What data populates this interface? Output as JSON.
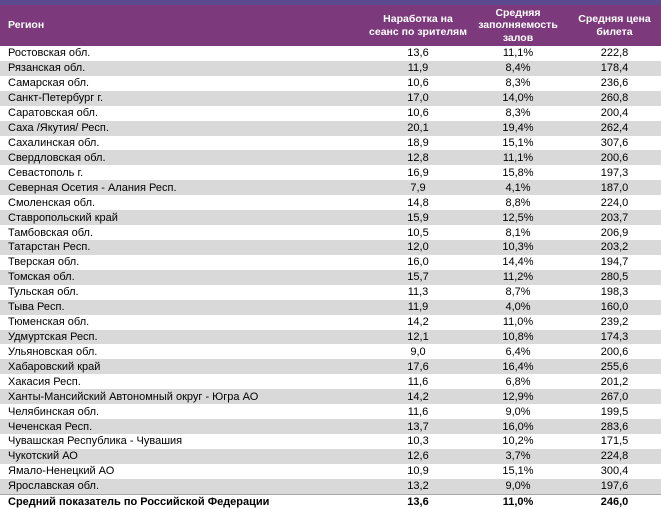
{
  "chart_data": {
    "type": "table",
    "title": "",
    "columns": [
      "Регион",
      "Наработка на сеанс по зрителям",
      "Средняя заполняемость залов",
      "Средняя цена билета"
    ],
    "rows": [
      [
        "Ростовская обл.",
        "13,6",
        "11,1%",
        "222,8"
      ],
      [
        "Рязанская обл.",
        "11,9",
        "8,4%",
        "178,4"
      ],
      [
        "Самарская обл.",
        "10,6",
        "8,3%",
        "236,6"
      ],
      [
        "Санкт-Петербург г.",
        "17,0",
        "14,0%",
        "260,8"
      ],
      [
        "Саратовская обл.",
        "10,6",
        "8,3%",
        "200,4"
      ],
      [
        "Саха /Якутия/ Респ.",
        "20,1",
        "19,4%",
        "262,4"
      ],
      [
        "Сахалинская обл.",
        "18,9",
        "15,1%",
        "307,6"
      ],
      [
        "Свердловская обл.",
        "12,8",
        "11,1%",
        "200,6"
      ],
      [
        "Севастополь г.",
        "16,9",
        "15,8%",
        "197,3"
      ],
      [
        "Северная Осетия - Алания Респ.",
        "7,9",
        "4,1%",
        "187,0"
      ],
      [
        "Смоленская обл.",
        "14,8",
        "8,8%",
        "224,0"
      ],
      [
        "Ставропольский край",
        "15,9",
        "12,5%",
        "203,7"
      ],
      [
        "Тамбовская обл.",
        "10,5",
        "8,1%",
        "206,9"
      ],
      [
        "Татарстан Респ.",
        "12,0",
        "10,3%",
        "203,2"
      ],
      [
        "Тверская обл.",
        "16,0",
        "14,4%",
        "194,7"
      ],
      [
        "Томская обл.",
        "15,7",
        "11,2%",
        "280,5"
      ],
      [
        "Тульская обл.",
        "11,3",
        "8,7%",
        "198,3"
      ],
      [
        "Тыва Респ.",
        "11,9",
        "4,0%",
        "160,0"
      ],
      [
        "Тюменская обл.",
        "14,2",
        "11,0%",
        "239,2"
      ],
      [
        "Удмуртская Респ.",
        "12,1",
        "10,8%",
        "174,3"
      ],
      [
        "Ульяновская обл.",
        "9,0",
        "6,4%",
        "200,6"
      ],
      [
        "Хабаровский край",
        "17,6",
        "16,4%",
        "255,6"
      ],
      [
        "Хакасия Респ.",
        "11,6",
        "6,8%",
        "201,2"
      ],
      [
        "Ханты-Мансийский Автономный округ - Югра АО",
        "14,2",
        "12,9%",
        "267,0"
      ],
      [
        "Челябинская обл.",
        "11,6",
        "9,0%",
        "199,5"
      ],
      [
        "Чеченская Респ.",
        "13,7",
        "16,0%",
        "283,6"
      ],
      [
        "Чувашская Республика - Чувашия",
        "10,3",
        "10,2%",
        "171,5"
      ],
      [
        "Чукотский АО",
        "12,6",
        "3,7%",
        "224,8"
      ],
      [
        "Ямало-Ненецкий АО",
        "10,9",
        "15,1%",
        "300,4"
      ],
      [
        "Ярославская обл.",
        "13,2",
        "9,0%",
        "197,6"
      ]
    ],
    "footer_row": [
      "Средний показатель по Российской Федерации",
      "13,6",
      "11,0%",
      "246,0"
    ],
    "layout": {
      "stripe_colors": [
        "#ffffff",
        "#d9d9d9"
      ],
      "header_bg": "#7c3a7c",
      "header_text_color": "#ffffff",
      "top_strip_color": "#5b4a8f",
      "grid": "off"
    }
  }
}
